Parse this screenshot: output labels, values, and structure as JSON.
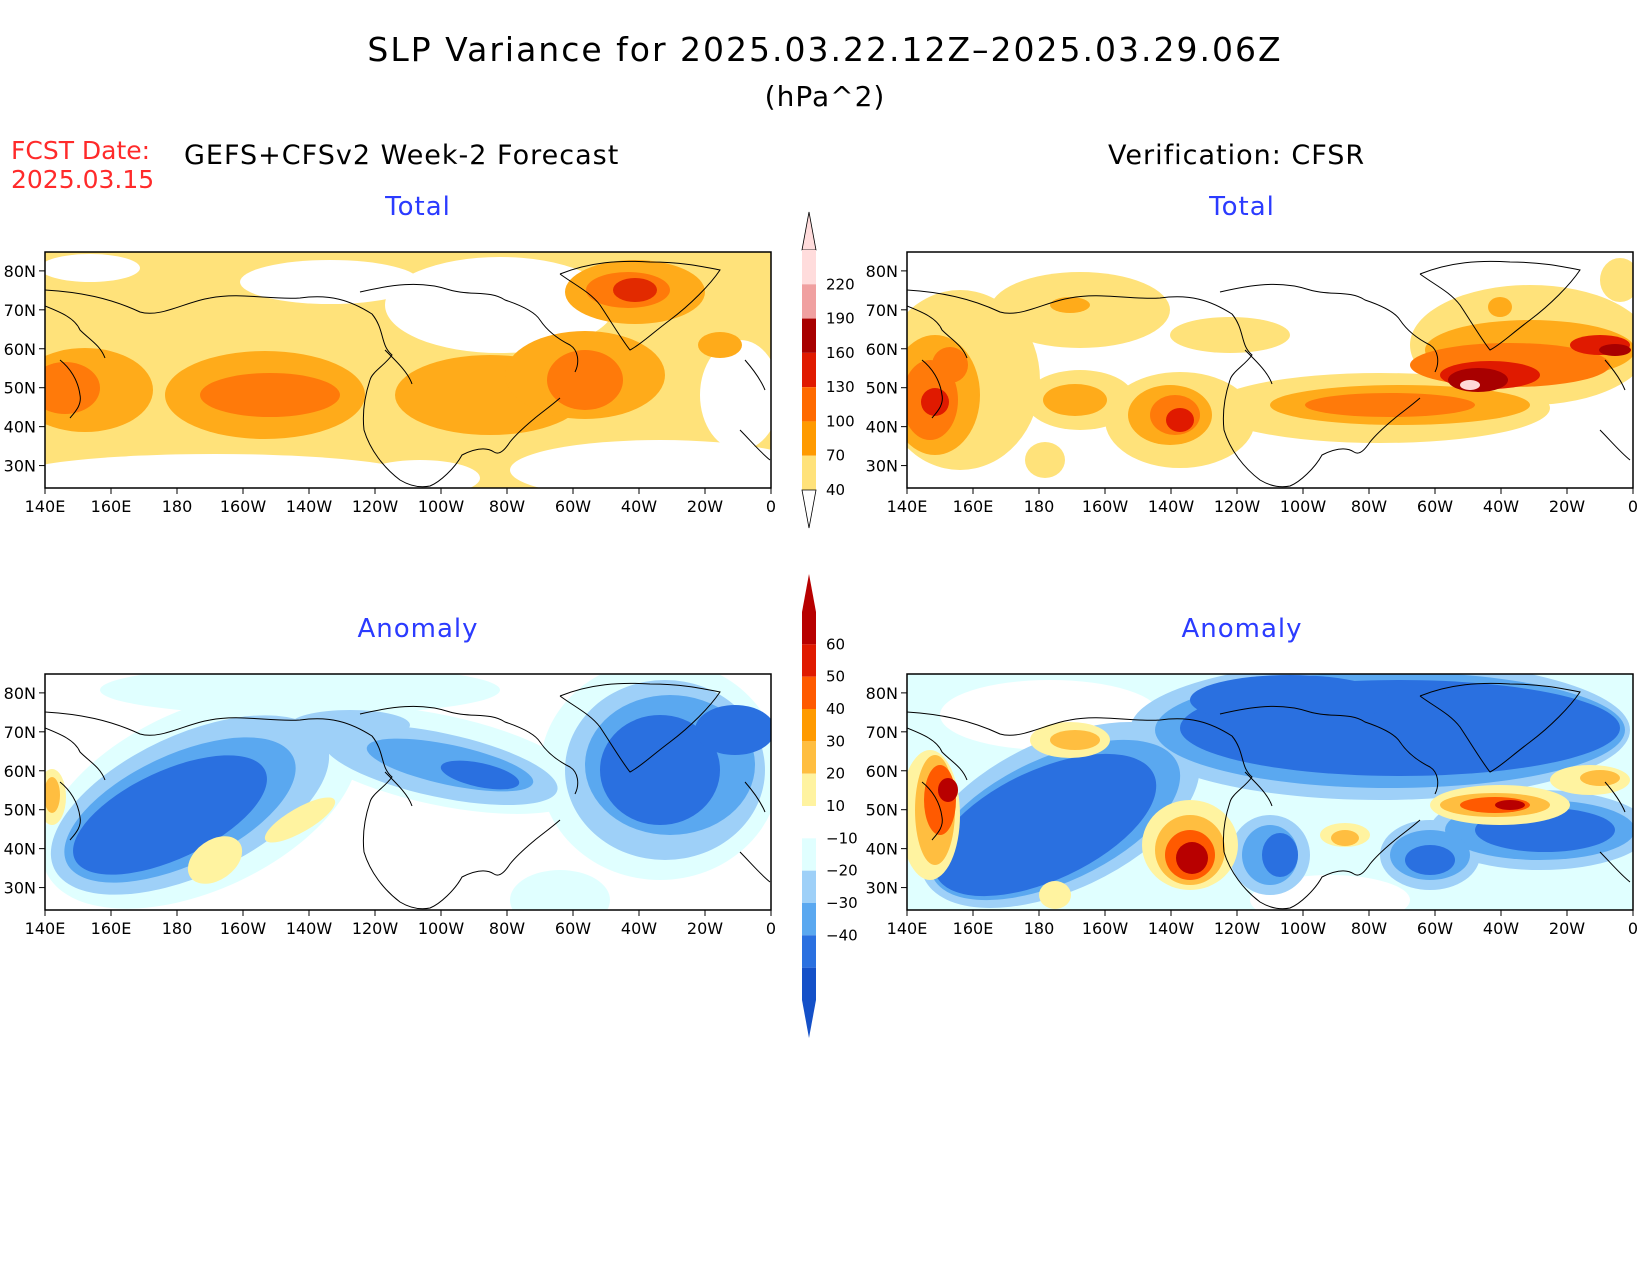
{
  "title": "SLP Variance for 2025.03.22.12Z–2025.03.29.06Z",
  "units": "(hPa^2)",
  "fcst_date_label": "FCST Date:",
  "fcst_date_value": "2025.03.15",
  "left_header": "GEFS+CFSv2 Week-2 Forecast",
  "right_header": "Verification: CFSR",
  "panel_titles": {
    "total": "Total",
    "anomaly": "Anomaly"
  },
  "lat_labels": [
    "80N",
    "70N",
    "60N",
    "50N",
    "40N",
    "30N"
  ],
  "lon_labels": [
    "140E",
    "160E",
    "180",
    "160W",
    "140W",
    "120W",
    "100W",
    "80W",
    "60W",
    "40W",
    "20W",
    "0"
  ],
  "colorbar_total": {
    "labels": [
      "220",
      "190",
      "160",
      "130",
      "100",
      "70",
      "40"
    ],
    "colors": [
      "#ffdcdc",
      "#f0a0a0",
      "#a80000",
      "#e01a00",
      "#ff6a00",
      "#ff9a00",
      "#ffe27a"
    ]
  },
  "colorbar_anomaly": {
    "labels": [
      "60",
      "50",
      "40",
      "30",
      "20",
      "10",
      "−10",
      "−20",
      "−30",
      "−40"
    ],
    "colors": [
      "#b80000",
      "#e01a00",
      "#ff5a00",
      "#ff9a00",
      "#ffbe40",
      "#fff3a0",
      "#ffffff",
      "#e0ffff",
      "#9ed0f8",
      "#5aa8f0",
      "#2a70e0",
      "#1450c8"
    ]
  }
}
